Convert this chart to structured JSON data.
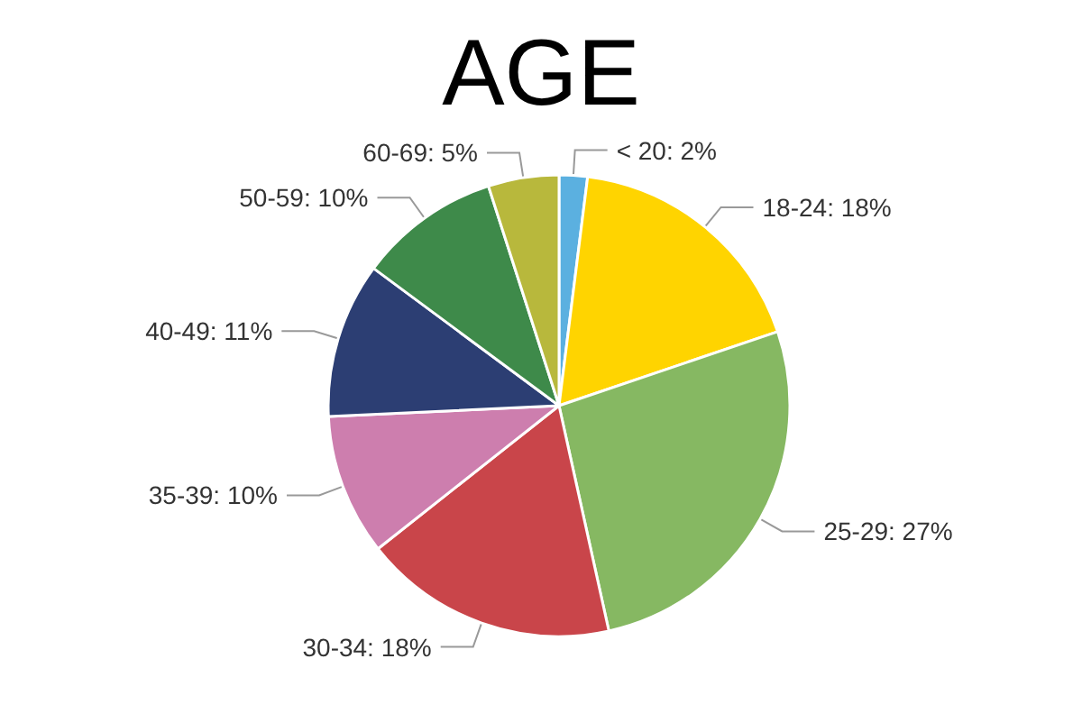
{
  "chart_data": {
    "type": "pie",
    "title": "AGE",
    "categories": [
      "< 20",
      "18-24",
      "25-29",
      "30-34",
      "35-39",
      "40-49",
      "50-59",
      "60-69"
    ],
    "values": [
      2,
      18,
      27,
      18,
      10,
      11,
      10,
      5
    ],
    "value_labels": [
      "2%",
      "18%",
      "27%",
      "18%",
      "10%",
      "11%",
      "10%",
      "5%"
    ],
    "colors": [
      "#5bb0e0",
      "#ffd400",
      "#86b862",
      "#c9454a",
      "#cd7eae",
      "#2c3e73",
      "#3e8a4a",
      "#b8b83c"
    ],
    "legend": false
  }
}
